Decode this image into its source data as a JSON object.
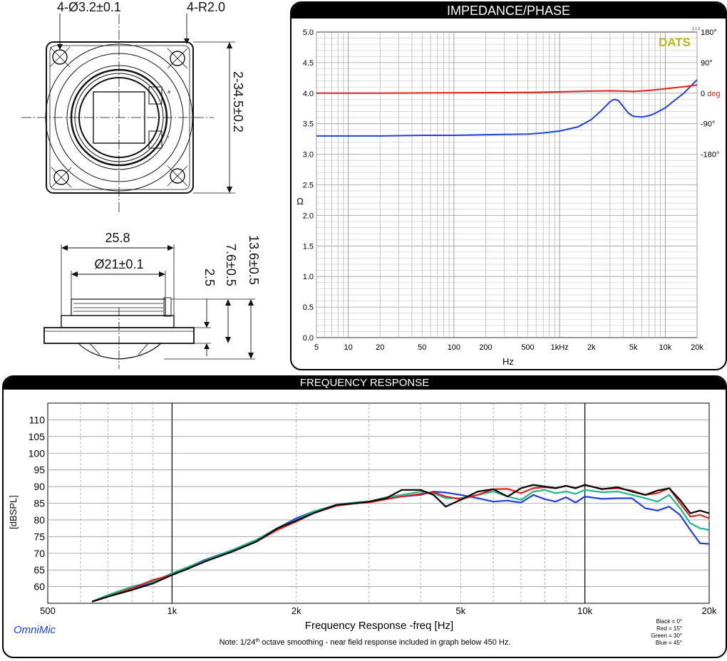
{
  "drawing": {
    "top_view": {
      "hole_label": "4-Ø3.2±0.1",
      "radius_label": "4-R2.0",
      "size_label": "2-34.5±0.2",
      "terminal_plus": "+",
      "terminal_minus": "-"
    },
    "side_view": {
      "width_label": "25.8",
      "diameter_label": "Ø21±0.1",
      "dim_a": "2.5",
      "dim_b": "7.6±0.5",
      "dim_c": "13.6±0.5"
    }
  },
  "impedance": {
    "title": "IMPEDANCE/PHASE",
    "brand": "DATS",
    "version": "3.1.6",
    "chart_data": {
      "type": "line",
      "title": "IMPEDANCE/PHASE",
      "xlabel": "Hz",
      "ylabel": "Ω",
      "x_scale": "log",
      "xlim": [
        5,
        20000
      ],
      "ylim": [
        0,
        5
      ],
      "y2lim": [
        -180,
        180
      ],
      "grid": true,
      "x_ticks": [
        5,
        10,
        20,
        50,
        100,
        200,
        500,
        1000,
        2000,
        5000,
        10000,
        20000
      ],
      "x_tick_labels": [
        "5",
        "10",
        "20",
        "50",
        "100",
        "200",
        "500",
        "1kHz",
        "2k",
        "5k",
        "10k",
        "20k"
      ],
      "y_tick_labels": [
        "0.0",
        "0.5",
        "1.0",
        "1.5",
        "2.0",
        "2.5",
        "3.0",
        "3.5",
        "4.0",
        "4.5",
        "5.0"
      ],
      "y2_tick_values": [
        180,
        90,
        0,
        -90,
        -180
      ],
      "y2_tick_labels": [
        "180°",
        "90°",
        "0",
        "-90°",
        "-180°"
      ],
      "y2_unit_label": "deg",
      "series": [
        {
          "color": "#1f3fe0",
          "axis": "left",
          "x": [
            5,
            10,
            20,
            50,
            100,
            200,
            500,
            700,
            1000,
            1500,
            2000,
            2500,
            3000,
            3300,
            3600,
            4000,
            4500,
            5000,
            6000,
            7000,
            8000,
            10000,
            12000,
            15000,
            20000
          ],
          "y": [
            3.3,
            3.3,
            3.3,
            3.31,
            3.31,
            3.32,
            3.33,
            3.35,
            3.38,
            3.45,
            3.57,
            3.72,
            3.86,
            3.9,
            3.88,
            3.78,
            3.67,
            3.62,
            3.61,
            3.63,
            3.67,
            3.76,
            3.87,
            4.0,
            4.22
          ]
        },
        {
          "color": "#e0201c",
          "axis": "right",
          "x": [
            5,
            20,
            100,
            500,
            1000,
            2000,
            3000,
            4000,
            5000,
            7000,
            10000,
            15000,
            20000
          ],
          "y": [
            0,
            0,
            1,
            2,
            4,
            6,
            7,
            6,
            5,
            8,
            13,
            19,
            24
          ]
        }
      ]
    }
  },
  "frequency": {
    "title": "FREQUENCY RESPONSE",
    "brand": "OmniMic",
    "note_prefix": "Note: 1/24",
    "note_sup": "th",
    "note_suffix": " octave smoothing - near field response included in graph below 450 Hz.",
    "legend": [
      "Black = 0°",
      "Red = 15°",
      "Green = 30°",
      "Blue = 45°"
    ],
    "chart_data": {
      "type": "line",
      "title": "FREQUENCY RESPONSE",
      "xlabel": "Frequency Response -freq [Hz]",
      "ylabel": "[dBSPL]",
      "x_scale": "log",
      "xlim": [
        500,
        20000
      ],
      "ylim": [
        55,
        115
      ],
      "grid": true,
      "x_ticks": [
        500,
        1000,
        2000,
        5000,
        10000,
        20000
      ],
      "x_tick_labels": [
        "500",
        "1k",
        "2k",
        "5k",
        "10k",
        "20k"
      ],
      "y_ticks": [
        60,
        65,
        70,
        75,
        80,
        85,
        90,
        95,
        100,
        105,
        110
      ],
      "y_tick_labels": [
        "60",
        "65",
        "70",
        "75",
        "80",
        "85",
        "90",
        "95",
        "100",
        "105",
        "110"
      ],
      "legend_position": "bottom-right",
      "series": [
        {
          "color": "#1f3fe0",
          "x": [
            640,
            700,
            800,
            900,
            1000,
            1100,
            1200,
            1400,
            1600,
            1800,
            2000,
            2200,
            2500,
            2800,
            3000,
            3300,
            3600,
            4000,
            4300,
            4600,
            5000,
            5500,
            6000,
            6500,
            7000,
            7500,
            8000,
            8500,
            9000,
            9500,
            10000,
            11000,
            12000,
            13000,
            14000,
            15000,
            16000,
            17000,
            18000,
            19000,
            20000
          ],
          "y": [
            55.5,
            57,
            59.5,
            61.5,
            64,
            66,
            68,
            71,
            74,
            77.5,
            80.5,
            82.5,
            84.5,
            85.3,
            85.5,
            86.3,
            87,
            87.5,
            88.5,
            88.2,
            87.5,
            86.5,
            85.5,
            85.8,
            85.2,
            87.5,
            86.2,
            85.5,
            86.8,
            85.2,
            87,
            86.3,
            86.5,
            86.5,
            83.5,
            82.8,
            84,
            81.5,
            77,
            73,
            72.8
          ]
        },
        {
          "color": "#1db88a",
          "x": [
            640,
            700,
            800,
            900,
            1000,
            1100,
            1200,
            1400,
            1600,
            1800,
            2000,
            2200,
            2500,
            2800,
            3000,
            3300,
            3600,
            4000,
            4300,
            4600,
            5000,
            5500,
            6000,
            6500,
            7000,
            7500,
            8000,
            8500,
            9000,
            9500,
            10000,
            11000,
            12000,
            13000,
            14000,
            15000,
            16000,
            17000,
            18000,
            19000,
            20000
          ],
          "y": [
            55.5,
            57.5,
            60,
            61.5,
            64,
            66,
            67.8,
            71,
            74,
            77.5,
            80,
            82.5,
            84.5,
            85.3,
            85.5,
            86.8,
            87.5,
            88.5,
            88,
            86.5,
            86.5,
            87.5,
            88.5,
            87,
            86,
            88.5,
            89,
            88,
            88.5,
            87.8,
            89,
            88.3,
            88.5,
            87.5,
            86.5,
            85.5,
            87.5,
            83.5,
            79,
            77.5,
            77
          ]
        },
        {
          "color": "#e0201c",
          "x": [
            640,
            700,
            800,
            900,
            1000,
            1100,
            1200,
            1400,
            1600,
            1800,
            2000,
            2200,
            2500,
            2800,
            3000,
            3300,
            3600,
            4000,
            4300,
            4600,
            5000,
            5500,
            6000,
            6500,
            7000,
            7500,
            8000,
            8500,
            9000,
            9500,
            10000,
            11000,
            12000,
            13000,
            14000,
            15000,
            16000,
            17000,
            18000,
            19000,
            20000
          ],
          "y": [
            55.5,
            57,
            59.5,
            62,
            63.5,
            65.5,
            67.5,
            70.5,
            73.5,
            77,
            79.5,
            82,
            84.2,
            85,
            85.2,
            86.2,
            87,
            87.8,
            88.3,
            87,
            86.2,
            87.5,
            89.2,
            89.3,
            88,
            89.5,
            89.8,
            89.5,
            90.2,
            89.5,
            90.5,
            89.3,
            89.5,
            88.8,
            87.5,
            88,
            89.5,
            85,
            81,
            81.5,
            80.5
          ]
        },
        {
          "color": "#000000",
          "x": [
            640,
            700,
            800,
            900,
            1000,
            1100,
            1200,
            1400,
            1600,
            1800,
            2000,
            2200,
            2500,
            2800,
            3000,
            3300,
            3600,
            4000,
            4300,
            4600,
            5000,
            5500,
            6000,
            6500,
            7000,
            7500,
            8000,
            8500,
            9000,
            9500,
            10000,
            11000,
            12000,
            13000,
            14000,
            15000,
            16000,
            17000,
            18000,
            19000,
            20000
          ],
          "y": [
            55.5,
            57,
            59,
            61,
            63.5,
            65.5,
            67.5,
            70.5,
            73.5,
            77.5,
            79.8,
            82,
            84.5,
            85,
            85.5,
            86.5,
            89,
            89,
            87.5,
            84,
            86,
            88.5,
            89.2,
            87,
            89.5,
            90.5,
            90,
            89.5,
            90.2,
            89.5,
            90.5,
            89.2,
            89.8,
            88.5,
            87.5,
            88.8,
            89.5,
            86,
            82,
            82.8,
            82
          ]
        }
      ]
    }
  }
}
